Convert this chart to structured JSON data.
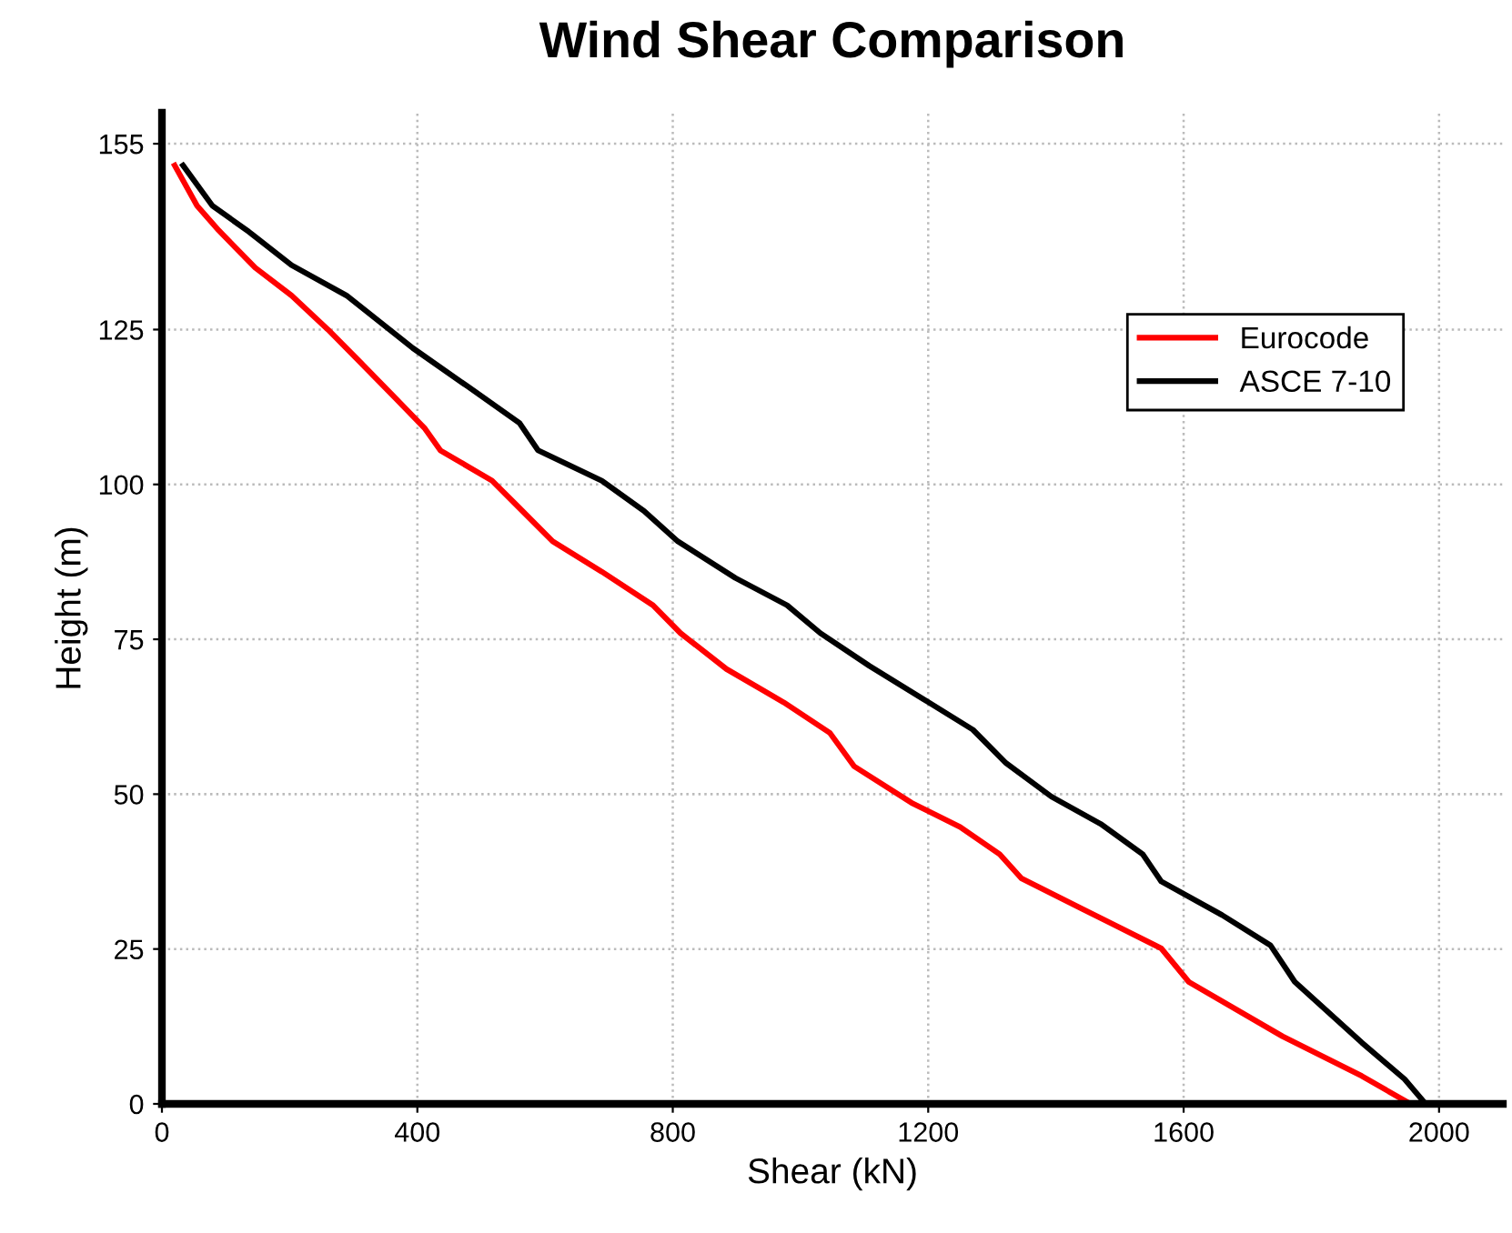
{
  "chart_data": {
    "type": "line",
    "title": "Wind Shear Comparison",
    "xlabel": "Shear (kN)",
    "ylabel": "Height (m)",
    "xlim": [
      0,
      2100
    ],
    "ylim": [
      0,
      160
    ],
    "xticks": [
      0,
      400,
      800,
      1200,
      1600,
      2000
    ],
    "yticks": [
      0,
      25,
      50,
      75,
      100,
      125,
      155
    ],
    "grid": true,
    "legend": "top right",
    "line_style": "solid",
    "marker": "none",
    "series": [
      {
        "name": "Eurocode",
        "color": "#ff0000",
        "x": [
          20,
          55,
          89,
          146,
          203,
          260,
          308,
          365,
          412,
          436,
          517,
          555,
          612,
          689,
          769,
          812,
          884,
          974,
          1046,
          1084,
          1174,
          1250,
          1312,
          1346,
          1441,
          1565,
          1608,
          1755,
          1879,
          1955
        ],
        "values": [
          151.5,
          145,
          141,
          135,
          130.5,
          125,
          120,
          114,
          109,
          105.5,
          100.6,
          96.7,
          90.8,
          85.9,
          80.5,
          76,
          70.2,
          64.8,
          59.9,
          54.5,
          48.6,
          44.7,
          40.3,
          36.4,
          31.5,
          25.1,
          19.7,
          10.9,
          4.5,
          0
        ]
      },
      {
        "name": "ASCE 7-10",
        "color": "#000000",
        "x": [
          33,
          79,
          136,
          203,
          289,
          393,
          479,
          560,
          589,
          689,
          755,
          808,
          898,
          979,
          1031,
          1108,
          1193,
          1270,
          1322,
          1393,
          1470,
          1536,
          1565,
          1660,
          1736,
          1774,
          1879,
          1946,
          1979
        ],
        "values": [
          151.5,
          145,
          140.8,
          135.4,
          130.5,
          122,
          115.8,
          109.9,
          105.5,
          100.6,
          95.7,
          90.8,
          84.9,
          80.5,
          76,
          70.7,
          65.3,
          60.4,
          55,
          49.6,
          45.2,
          40.3,
          35.9,
          30.5,
          25.6,
          19.7,
          9.9,
          4,
          0
        ]
      }
    ]
  }
}
